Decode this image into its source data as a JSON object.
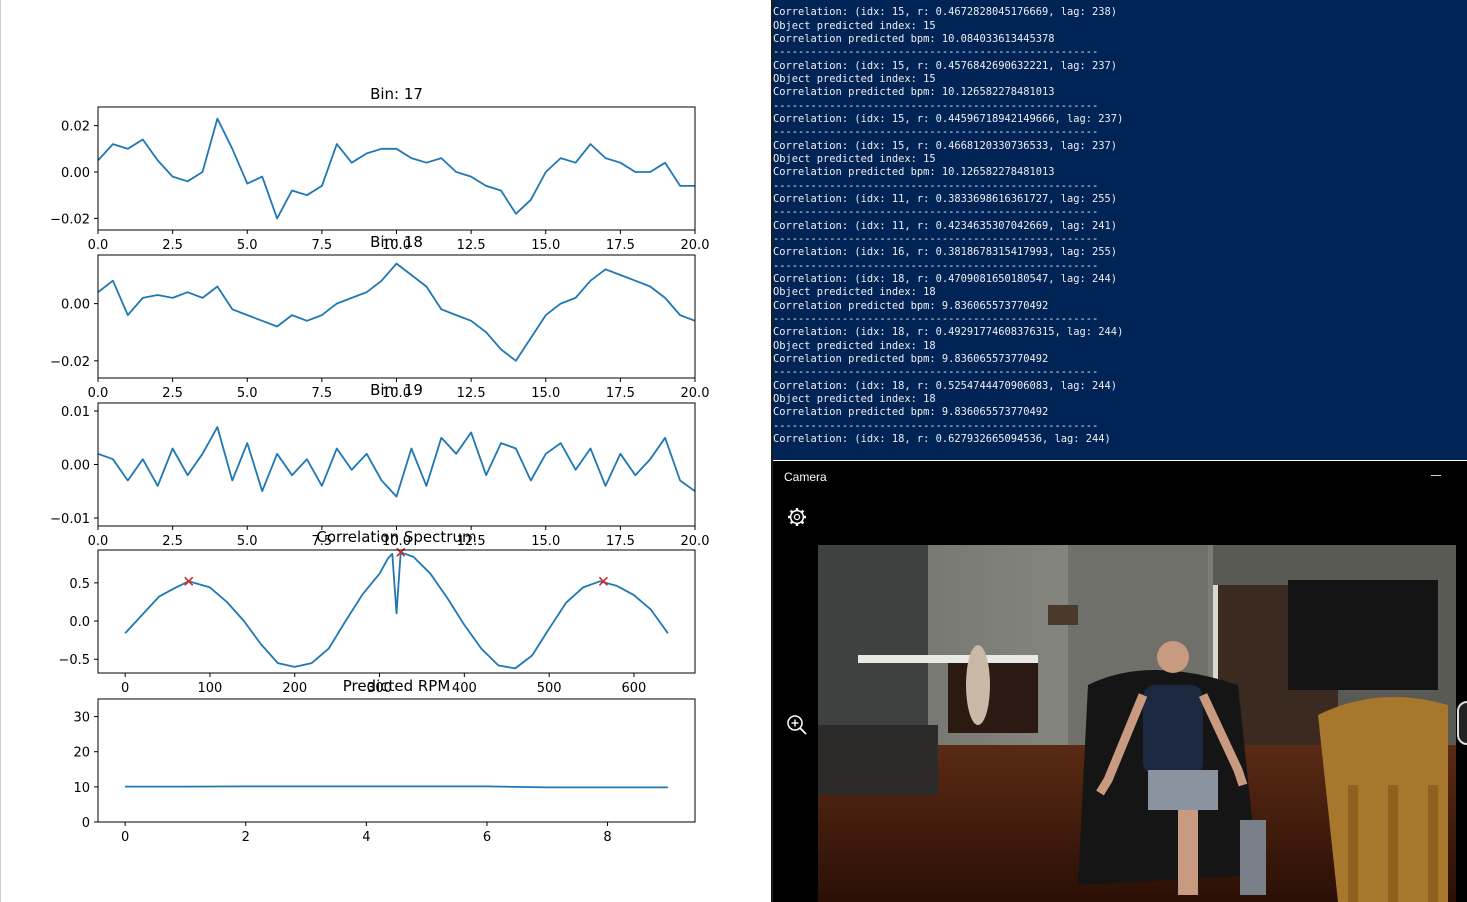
{
  "plot_window": {
    "subplots": [
      {
        "title": "Bin: 17",
        "xticks": [
          "0.0",
          "2.5",
          "5.0",
          "7.5",
          "10.0",
          "12.5",
          "15.0",
          "17.5",
          "20.0"
        ],
        "yticks": [
          "0.02",
          "0.00",
          "−0.02"
        ]
      },
      {
        "title": "Bin: 18",
        "xticks": [
          "0.0",
          "2.5",
          "5.0",
          "7.5",
          "10.0",
          "12.5",
          "15.0",
          "17.5",
          "20.0"
        ],
        "yticks": [
          "0.00",
          "−0.02"
        ]
      },
      {
        "title": "Bin: 19",
        "xticks": [
          "0.0",
          "2.5",
          "5.0",
          "7.5",
          "10.0",
          "12.5",
          "15.0",
          "17.5",
          "20.0"
        ],
        "yticks": [
          "0.01",
          "0.00",
          "−0.01"
        ]
      },
      {
        "title": "Correlation Spectrum",
        "xticks": [
          "0",
          "100",
          "200",
          "300",
          "400",
          "500",
          "600"
        ],
        "yticks": [
          "0.5",
          "0.0",
          "−0.5"
        ]
      },
      {
        "title": "Predicted RPM",
        "xticks": [
          "0",
          "2",
          "4",
          "6",
          "8"
        ],
        "yticks": [
          "30",
          "20",
          "10",
          "0"
        ]
      }
    ]
  },
  "chart_data": [
    {
      "type": "line",
      "title": "Bin: 17",
      "xlim": [
        0,
        20
      ],
      "ylim": [
        -0.025,
        0.028
      ],
      "series": [
        {
          "x": [
            0,
            0.5,
            1,
            1.5,
            2,
            2.5,
            3,
            3.5,
            4,
            4.5,
            5,
            5.5,
            6,
            6.5,
            7,
            7.5,
            8,
            8.5,
            9,
            9.5,
            10,
            10.5,
            11,
            11.5,
            12,
            12.5,
            13,
            13.5,
            14,
            14.5,
            15,
            15.5,
            16,
            16.5,
            17,
            17.5,
            18,
            18.5,
            19,
            19.5,
            20
          ],
          "y": [
            0.005,
            0.012,
            0.01,
            0.014,
            0.005,
            -0.002,
            -0.004,
            0.0,
            0.023,
            0.01,
            -0.005,
            -0.002,
            -0.02,
            -0.008,
            -0.01,
            -0.006,
            0.012,
            0.004,
            0.008,
            0.01,
            0.01,
            0.006,
            0.004,
            0.006,
            0.0,
            -0.002,
            -0.006,
            -0.008,
            -0.018,
            -0.012,
            0.0,
            0.006,
            0.004,
            0.012,
            0.006,
            0.004,
            0.0,
            0.0,
            0.004,
            -0.006,
            -0.006
          ]
        }
      ]
    },
    {
      "type": "line",
      "title": "Bin: 18",
      "xlim": [
        0,
        20
      ],
      "ylim": [
        -0.026,
        0.017
      ],
      "series": [
        {
          "x": [
            0,
            0.5,
            1,
            1.5,
            2,
            2.5,
            3,
            3.5,
            4,
            4.5,
            5,
            5.5,
            6,
            6.5,
            7,
            7.5,
            8,
            8.5,
            9,
            9.5,
            10,
            10.5,
            11,
            11.5,
            12,
            12.5,
            13,
            13.5,
            14,
            14.5,
            15,
            15.5,
            16,
            16.5,
            17,
            17.5,
            18,
            18.5,
            19,
            19.5,
            20
          ],
          "y": [
            0.004,
            0.008,
            -0.004,
            0.002,
            0.003,
            0.002,
            0.004,
            0.002,
            0.006,
            -0.002,
            -0.004,
            -0.006,
            -0.008,
            -0.004,
            -0.006,
            -0.004,
            0.0,
            0.002,
            0.004,
            0.008,
            0.014,
            0.01,
            0.006,
            -0.002,
            -0.004,
            -0.006,
            -0.01,
            -0.016,
            -0.02,
            -0.012,
            -0.004,
            0.0,
            0.002,
            0.008,
            0.012,
            0.01,
            0.008,
            0.006,
            0.002,
            -0.004,
            -0.006
          ]
        }
      ]
    },
    {
      "type": "line",
      "title": "Bin: 19",
      "xlim": [
        0,
        20
      ],
      "ylim": [
        -0.0115,
        0.0115
      ],
      "series": [
        {
          "x": [
            0,
            0.5,
            1,
            1.5,
            2,
            2.5,
            3,
            3.5,
            4,
            4.5,
            5,
            5.5,
            6,
            6.5,
            7,
            7.5,
            8,
            8.5,
            9,
            9.5,
            10,
            10.5,
            11,
            11.5,
            12,
            12.5,
            13,
            13.5,
            14,
            14.5,
            15,
            15.5,
            16,
            16.5,
            17,
            17.5,
            18,
            18.5,
            19,
            19.5,
            20
          ],
          "y": [
            0.002,
            0.001,
            -0.003,
            0.001,
            -0.004,
            0.003,
            -0.002,
            0.002,
            0.007,
            -0.003,
            0.004,
            -0.005,
            0.002,
            -0.002,
            0.001,
            -0.004,
            0.003,
            -0.001,
            0.002,
            -0.003,
            -0.006,
            0.003,
            -0.004,
            0.005,
            0.002,
            0.006,
            -0.002,
            0.004,
            0.003,
            -0.003,
            0.002,
            0.004,
            -0.001,
            0.003,
            -0.004,
            0.002,
            -0.002,
            0.001,
            0.005,
            -0.003,
            -0.005
          ]
        }
      ]
    },
    {
      "type": "line",
      "title": "Correlation Spectrum",
      "xlim": [
        -32,
        672
      ],
      "ylim": [
        -0.68,
        0.93
      ],
      "series": [
        {
          "x": [
            0,
            20,
            40,
            60,
            75,
            100,
            120,
            140,
            160,
            180,
            200,
            220,
            240,
            260,
            280,
            300,
            310,
            315,
            320,
            325,
            330,
            340,
            360,
            380,
            400,
            420,
            440,
            460,
            480,
            500,
            520,
            540,
            560,
            580,
            600,
            620,
            640
          ],
          "y": [
            -0.16,
            0.08,
            0.32,
            0.44,
            0.52,
            0.44,
            0.25,
            0.0,
            -0.3,
            -0.55,
            -0.6,
            -0.55,
            -0.36,
            0.0,
            0.35,
            0.62,
            0.82,
            0.88,
            0.1,
            0.9,
            0.88,
            0.84,
            0.62,
            0.3,
            -0.05,
            -0.36,
            -0.58,
            -0.62,
            -0.45,
            -0.1,
            0.24,
            0.44,
            0.52,
            0.46,
            0.34,
            0.15,
            -0.16
          ]
        }
      ],
      "peak_markers": [
        {
          "x": 75,
          "y": 0.52
        },
        {
          "x": 325,
          "y": 0.9
        },
        {
          "x": 564,
          "y": 0.52
        }
      ]
    },
    {
      "type": "line",
      "title": "Predicted RPM",
      "xlim": [
        -0.45,
        9.45
      ],
      "ylim": [
        0,
        35
      ],
      "series": [
        {
          "x": [
            0,
            1,
            2,
            3,
            4,
            5,
            6,
            7,
            8,
            9
          ],
          "y": [
            10.08,
            10.08,
            10.13,
            10.13,
            10.13,
            10.13,
            10.13,
            9.84,
            9.84,
            9.84
          ]
        }
      ]
    }
  ],
  "terminal": {
    "lines": [
      "----------------------------------------------------",
      "Correlation: (idx: 15, r: 0.4672828045176669, lag: 238)",
      "Object predicted index: 15",
      "Correlation predicted bpm: 10.084033613445378",
      "----------------------------------------------------",
      "Correlation: (idx: 15, r: 0.4576842690632221, lag: 237)",
      "Object predicted index: 15",
      "Correlation predicted bpm: 10.126582278481013",
      "----------------------------------------------------",
      "Correlation: (idx: 15, r: 0.44596718942149666, lag: 237)",
      "----------------------------------------------------",
      "Correlation: (idx: 15, r: 0.4668120330736533, lag: 237)",
      "Object predicted index: 15",
      "Correlation predicted bpm: 10.126582278481013",
      "----------------------------------------------------",
      "Correlation: (idx: 11, r: 0.3833698616361727, lag: 255)",
      "----------------------------------------------------",
      "Correlation: (idx: 11, r: 0.4234635307042669, lag: 241)",
      "----------------------------------------------------",
      "Correlation: (idx: 16, r: 0.3818678315417993, lag: 255)",
      "----------------------------------------------------",
      "Correlation: (idx: 18, r: 0.4709081650180547, lag: 244)",
      "Object predicted index: 18",
      "Correlation predicted bpm: 9.836065573770492",
      "----------------------------------------------------",
      "Correlation: (idx: 18, r: 0.49291774608376315, lag: 244)",
      "Object predicted index: 18",
      "Correlation predicted bpm: 9.836065573770492",
      "----------------------------------------------------",
      "Correlation: (idx: 18, r: 0.5254744470906083, lag: 244)",
      "Object predicted index: 18",
      "Correlation predicted bpm: 9.836065573770492",
      "----------------------------------------------------",
      "Correlation: (idx: 18, r: 0.627932665094536, lag: 244)"
    ]
  },
  "camera": {
    "title": "Camera",
    "icons": {
      "settings": "gear-icon",
      "zoom": "zoom-in-icon",
      "minimize": "minimize-icon"
    }
  },
  "colors": {
    "line": "#1f77b4",
    "marker": "#d62728",
    "terminal_bg": "#012456",
    "terminal_text": "#eeeeee",
    "camera_bg": "#000000"
  }
}
